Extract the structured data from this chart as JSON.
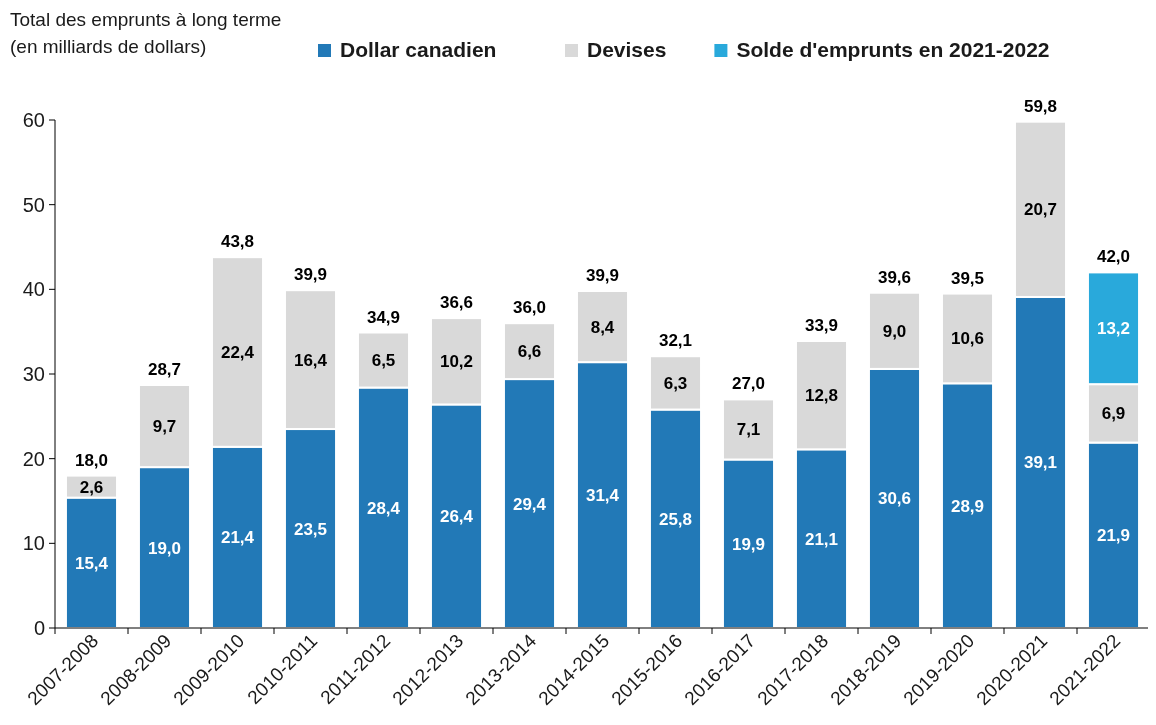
{
  "chart_data": {
    "type": "bar",
    "stacked": true,
    "ylabel": "Total des emprunts à long terme\n(en milliards de dollars)",
    "categories": [
      "2007-2008",
      "2008-2009",
      "2009-2010",
      "2010-2011",
      "2011-2012",
      "2012-2013",
      "2013-2014",
      "2014-2015",
      "2015-2016",
      "2016-2017",
      "2017-2018",
      "2018-2019",
      "2019-2020",
      "2020-2021",
      "2021-2022"
    ],
    "series": [
      {
        "name": "Dollar canadien",
        "color": "#2279b7",
        "values": [
          15.4,
          19.0,
          21.4,
          23.5,
          28.4,
          26.4,
          29.4,
          31.4,
          25.8,
          19.9,
          21.1,
          30.6,
          28.9,
          39.1,
          21.9
        ],
        "value_labels": [
          "15,4",
          "19,0",
          "21,4",
          "23,5",
          "28,4",
          "26,4",
          "29,4",
          "31,4",
          "25,8",
          "19,9",
          "21,1",
          "30,6",
          "28,9",
          "39,1",
          "21,9"
        ]
      },
      {
        "name": "Devises",
        "color": "#d9d9d9",
        "values": [
          2.6,
          9.7,
          22.4,
          16.4,
          6.5,
          10.2,
          6.6,
          8.4,
          6.3,
          7.1,
          12.8,
          9.0,
          10.6,
          20.7,
          6.9
        ],
        "value_labels": [
          "2,6",
          "9,7",
          "22,4",
          "16,4",
          "6,5",
          "10,2",
          "6,6",
          "8,4",
          "6,3",
          "7,1",
          "12,8",
          "9,0",
          "10,6",
          "20,7",
          "6,9"
        ]
      },
      {
        "name": "Solde d'emprunts en 2021-2022",
        "color": "#29a9db",
        "values": [
          null,
          null,
          null,
          null,
          null,
          null,
          null,
          null,
          null,
          null,
          null,
          null,
          null,
          null,
          13.2
        ],
        "value_labels": [
          null,
          null,
          null,
          null,
          null,
          null,
          null,
          null,
          null,
          null,
          null,
          null,
          null,
          null,
          "13,2"
        ]
      }
    ],
    "totals": [
      "18,0",
      "28,7",
      "43,8",
      "39,9",
      "34,9",
      "36,6",
      "36,0",
      "39,9",
      "32,1",
      "27,0",
      "33,9",
      "39,6",
      "39,5",
      "59,8",
      "42,0"
    ],
    "ylim": [
      0,
      60
    ],
    "yticks": [
      0,
      10,
      20,
      30,
      40,
      50,
      60
    ],
    "grid": false,
    "legend": "top"
  }
}
